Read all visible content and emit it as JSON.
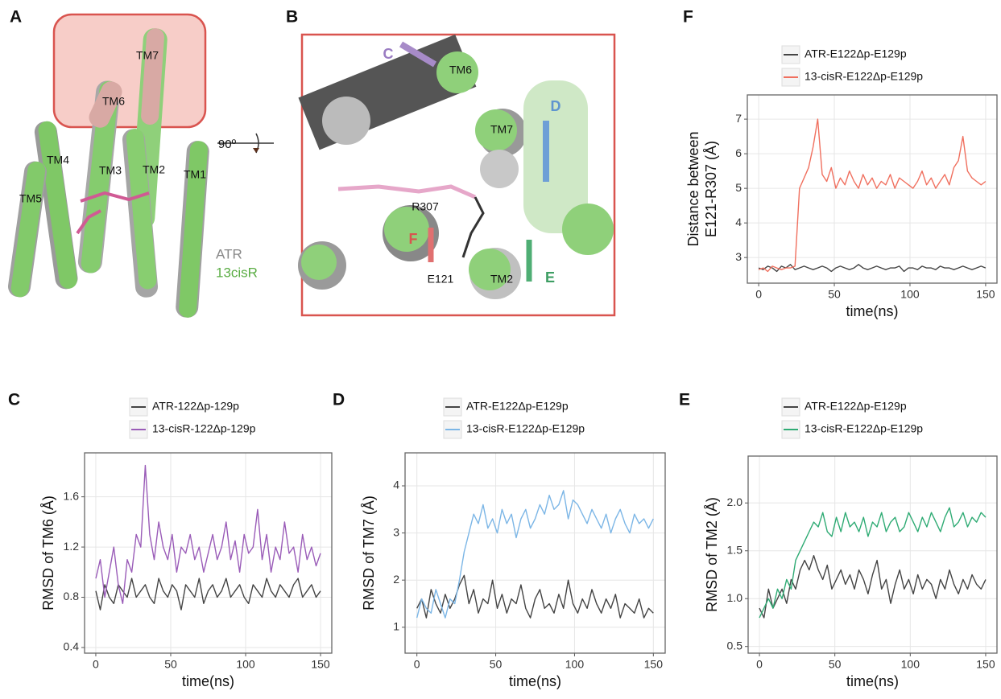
{
  "figure_a": {
    "letter": "A",
    "labels": [
      "TM7",
      "TM6",
      "TM4",
      "TM3",
      "TM2",
      "TM1",
      "TM5"
    ],
    "rotation": "90º",
    "legend": [
      "ATR",
      "13cisR"
    ]
  },
  "figure_b": {
    "letter": "B",
    "labels": [
      "C",
      "TM6",
      "D",
      "TM7",
      "R307",
      "F",
      "E121",
      "TM2",
      "E"
    ]
  },
  "chart_data": [
    {
      "type": "line",
      "panel": "F",
      "xlabel": "time(ns)",
      "ylabel": [
        "Distance between",
        "E121-R307 (Å)"
      ],
      "x": [
        0,
        3,
        6,
        9,
        12,
        15,
        18,
        21,
        24,
        27,
        30,
        33,
        36,
        39,
        42,
        45,
        48,
        51,
        54,
        57,
        60,
        63,
        66,
        69,
        72,
        75,
        78,
        81,
        84,
        87,
        90,
        93,
        96,
        99,
        102,
        105,
        108,
        111,
        114,
        117,
        120,
        123,
        126,
        129,
        132,
        135,
        138,
        141,
        144,
        147,
        150
      ],
      "xlim": [
        -7.5,
        157.5
      ],
      "xticks": [
        0,
        50,
        100,
        150
      ],
      "ylim": [
        2.26,
        7.7
      ],
      "yticks": [
        3,
        4,
        5,
        6,
        7
      ],
      "grid": true,
      "series": [
        {
          "name": "ATR-E122Δp-E129p",
          "color": "#444444",
          "values": [
            2.7,
            2.65,
            2.75,
            2.7,
            2.6,
            2.75,
            2.7,
            2.8,
            2.65,
            2.7,
            2.75,
            2.7,
            2.65,
            2.7,
            2.75,
            2.7,
            2.6,
            2.7,
            2.75,
            2.7,
            2.65,
            2.7,
            2.8,
            2.7,
            2.65,
            2.7,
            2.75,
            2.7,
            2.65,
            2.7,
            2.7,
            2.75,
            2.6,
            2.7,
            2.7,
            2.65,
            2.75,
            2.7,
            2.7,
            2.65,
            2.75,
            2.7,
            2.7,
            2.65,
            2.7,
            2.75,
            2.7,
            2.65,
            2.7,
            2.75,
            2.7
          ]
        },
        {
          "name": "13-cisR-E122Δp-E129p",
          "color": "#f0705f",
          "values": [
            2.65,
            2.7,
            2.6,
            2.75,
            2.7,
            2.65,
            2.7,
            2.7,
            2.75,
            5.0,
            5.3,
            5.6,
            6.2,
            7.0,
            5.4,
            5.2,
            5.6,
            5.0,
            5.3,
            5.1,
            5.5,
            5.2,
            5.0,
            5.4,
            5.1,
            5.3,
            5.0,
            5.2,
            5.1,
            5.4,
            5.0,
            5.3,
            5.2,
            5.1,
            5.0,
            5.2,
            5.5,
            5.1,
            5.3,
            5.0,
            5.2,
            5.4,
            5.1,
            5.6,
            5.8,
            6.5,
            5.5,
            5.3,
            5.2,
            5.1,
            5.2
          ]
        }
      ]
    },
    {
      "type": "line",
      "panel": "C",
      "xlabel": "time(ns)",
      "ylabel": [
        "RMSD of TM6 (Å)"
      ],
      "x": [
        0,
        3,
        6,
        9,
        12,
        15,
        18,
        21,
        24,
        27,
        30,
        33,
        36,
        39,
        42,
        45,
        48,
        51,
        54,
        57,
        60,
        63,
        66,
        69,
        72,
        75,
        78,
        81,
        84,
        87,
        90,
        93,
        96,
        99,
        102,
        105,
        108,
        111,
        114,
        117,
        120,
        123,
        126,
        129,
        132,
        135,
        138,
        141,
        144,
        147,
        150
      ],
      "xlim": [
        -7.5,
        157.5
      ],
      "xticks": [
        0,
        50,
        100,
        150
      ],
      "ylim": [
        0.355,
        1.95
      ],
      "yticks": [
        0.4,
        0.8,
        1.2,
        1.6
      ],
      "grid": true,
      "series": [
        {
          "name": "ATR-122Δp-129p",
          "color": "#444444",
          "values": [
            0.85,
            0.7,
            0.9,
            0.8,
            0.75,
            0.9,
            0.85,
            0.8,
            0.95,
            0.8,
            0.85,
            0.9,
            0.8,
            0.75,
            0.95,
            0.85,
            0.8,
            0.9,
            0.85,
            0.7,
            0.9,
            0.85,
            0.8,
            0.95,
            0.75,
            0.85,
            0.9,
            0.8,
            0.85,
            0.95,
            0.8,
            0.85,
            0.9,
            0.8,
            0.75,
            0.9,
            0.85,
            0.8,
            0.95,
            0.85,
            0.8,
            0.9,
            0.85,
            0.8,
            0.9,
            0.95,
            0.8,
            0.85,
            0.9,
            0.8,
            0.85
          ]
        },
        {
          "name": "13-cisR-122Δp-129p",
          "color": "#9a5cb8",
          "values": [
            0.95,
            1.1,
            0.8,
            1.0,
            1.2,
            0.9,
            0.75,
            1.1,
            1.0,
            1.3,
            1.2,
            1.85,
            1.3,
            1.1,
            1.4,
            1.2,
            1.1,
            1.3,
            1.0,
            1.2,
            1.15,
            1.3,
            1.1,
            1.2,
            1.0,
            1.15,
            1.3,
            1.1,
            1.2,
            1.4,
            1.1,
            1.25,
            1.0,
            1.3,
            1.15,
            1.2,
            1.5,
            1.1,
            1.3,
            1.0,
            1.2,
            1.1,
            1.4,
            1.15,
            1.2,
            1.0,
            1.3,
            1.1,
            1.2,
            1.05,
            1.15
          ]
        }
      ]
    },
    {
      "type": "line",
      "panel": "D",
      "xlabel": "time(ns)",
      "ylabel": [
        "RMSD of TM7 (Å)"
      ],
      "x": [
        0,
        3,
        6,
        9,
        12,
        15,
        18,
        21,
        24,
        27,
        30,
        33,
        36,
        39,
        42,
        45,
        48,
        51,
        54,
        57,
        60,
        63,
        66,
        69,
        72,
        75,
        78,
        81,
        84,
        87,
        90,
        93,
        96,
        99,
        102,
        105,
        108,
        111,
        114,
        117,
        120,
        123,
        126,
        129,
        132,
        135,
        138,
        141,
        144,
        147,
        150
      ],
      "xlim": [
        -7.5,
        157.5
      ],
      "xticks": [
        0,
        50,
        100,
        150
      ],
      "ylim": [
        0.45,
        4.7
      ],
      "yticks": [
        1,
        2,
        3,
        4
      ],
      "grid": true,
      "series": [
        {
          "name": "ATR-E122Δp-E129p",
          "color": "#444444",
          "values": [
            1.4,
            1.6,
            1.2,
            1.8,
            1.5,
            1.3,
            1.7,
            1.4,
            1.6,
            1.9,
            2.1,
            1.5,
            1.8,
            1.3,
            1.6,
            1.5,
            2.0,
            1.4,
            1.7,
            1.3,
            1.6,
            1.5,
            1.9,
            1.4,
            1.2,
            1.6,
            1.8,
            1.4,
            1.5,
            1.3,
            1.7,
            1.4,
            2.0,
            1.5,
            1.3,
            1.6,
            1.4,
            1.8,
            1.5,
            1.3,
            1.6,
            1.4,
            1.7,
            1.2,
            1.5,
            1.4,
            1.3,
            1.6,
            1.2,
            1.4,
            1.3
          ]
        },
        {
          "name": "13-cisR-E122Δp-E129p",
          "color": "#7cb6e6",
          "values": [
            1.2,
            1.6,
            1.4,
            1.3,
            1.8,
            1.5,
            1.2,
            1.6,
            1.5,
            2.0,
            2.6,
            3.0,
            3.4,
            3.2,
            3.6,
            3.1,
            3.3,
            3.0,
            3.5,
            3.2,
            3.4,
            2.9,
            3.3,
            3.5,
            3.1,
            3.3,
            3.6,
            3.4,
            3.8,
            3.5,
            3.6,
            3.9,
            3.3,
            3.7,
            3.6,
            3.4,
            3.2,
            3.5,
            3.3,
            3.1,
            3.4,
            3.0,
            3.3,
            3.5,
            3.2,
            3.0,
            3.4,
            3.2,
            3.3,
            3.1,
            3.3
          ]
        }
      ]
    },
    {
      "type": "line",
      "panel": "E",
      "xlabel": "time(ns)",
      "ylabel": [
        "RMSD of TM2 (Å)"
      ],
      "x": [
        0,
        3,
        6,
        9,
        12,
        15,
        18,
        21,
        24,
        27,
        30,
        33,
        36,
        39,
        42,
        45,
        48,
        51,
        54,
        57,
        60,
        63,
        66,
        69,
        72,
        75,
        78,
        81,
        84,
        87,
        90,
        93,
        96,
        99,
        102,
        105,
        108,
        111,
        114,
        117,
        120,
        123,
        126,
        129,
        132,
        135,
        138,
        141,
        144,
        147,
        150
      ],
      "xlim": [
        -7.5,
        157.5
      ],
      "xticks": [
        0,
        50,
        100,
        150
      ],
      "ylim": [
        0.43,
        2.49
      ],
      "yticks": [
        0.5,
        {
          "value": 1,
          "label": "1.0"
        },
        1.5,
        {
          "value": 2,
          "label": "2.0"
        }
      ],
      "grid": true,
      "series": [
        {
          "name": "ATR-E122Δp-E129p",
          "color": "#444444",
          "values": [
            0.9,
            0.8,
            1.1,
            0.9,
            1.0,
            1.1,
            0.95,
            1.2,
            1.1,
            1.3,
            1.4,
            1.3,
            1.45,
            1.3,
            1.2,
            1.35,
            1.1,
            1.2,
            1.3,
            1.15,
            1.25,
            1.1,
            1.3,
            1.2,
            1.05,
            1.25,
            1.4,
            1.1,
            1.2,
            0.95,
            1.15,
            1.3,
            1.1,
            1.2,
            1.05,
            1.25,
            1.1,
            1.2,
            1.15,
            1.0,
            1.2,
            1.1,
            1.3,
            1.15,
            1.05,
            1.2,
            1.1,
            1.25,
            1.15,
            1.1,
            1.2
          ]
        },
        {
          "name": "13-cisR-E122Δp-E129p",
          "color": "#2fab74",
          "values": [
            0.8,
            0.9,
            1.0,
            0.9,
            1.1,
            1.0,
            1.2,
            1.1,
            1.4,
            1.5,
            1.6,
            1.7,
            1.8,
            1.75,
            1.9,
            1.7,
            1.65,
            1.85,
            1.7,
            1.9,
            1.75,
            1.8,
            1.7,
            1.85,
            1.65,
            1.8,
            1.75,
            1.9,
            1.7,
            1.8,
            1.85,
            1.7,
            1.75,
            1.9,
            1.8,
            1.7,
            1.85,
            1.75,
            1.9,
            1.8,
            1.7,
            1.85,
            1.95,
            1.75,
            1.8,
            1.9,
            1.75,
            1.85,
            1.8,
            1.9,
            1.85
          ]
        }
      ]
    }
  ]
}
